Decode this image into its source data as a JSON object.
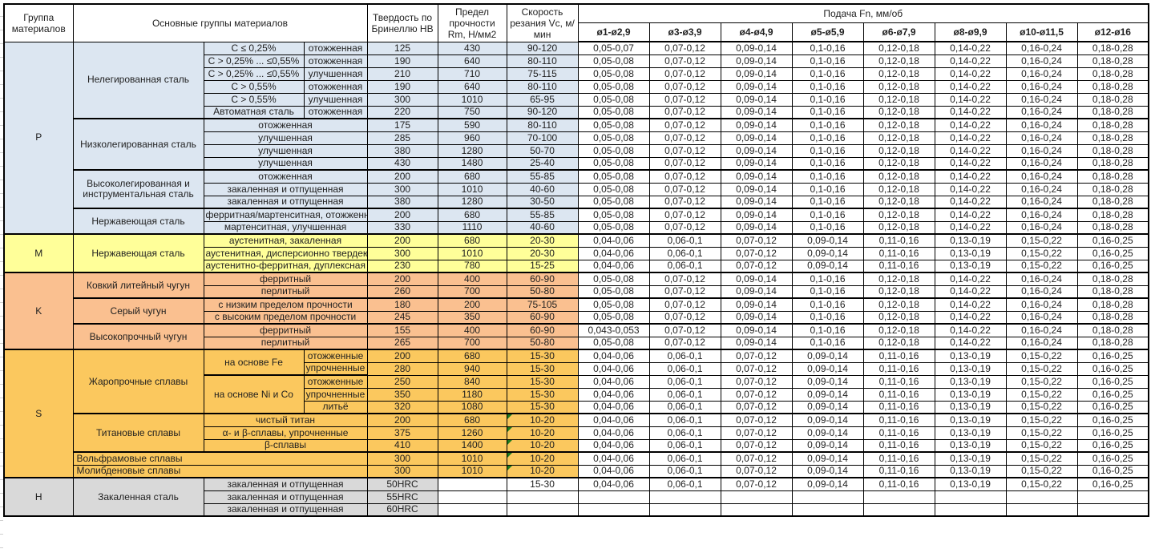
{
  "header": {
    "col_group": "Группа материалов",
    "col_main": "Основные группы материалов",
    "col_hb": "Твердость по Бринеллю HB",
    "col_rm": "Предел прочности Rm, Н/мм2",
    "col_vc": "Скорость резания Vc, м/мин",
    "feed_title": "Подача Fn, мм/об",
    "feed_cols": [
      "ø1-ø2,9",
      "ø3-ø3,9",
      "ø4-ø4,9",
      "ø5-ø5,9",
      "ø6-ø7,9",
      "ø8-ø9,9",
      "ø10-ø11,5",
      "ø12-ø16"
    ]
  },
  "group_colors": {
    "P": "#DCE6F1",
    "M": "#FFFF99",
    "K": "#FAC090",
    "S": "#FBC85E",
    "H": "#D9D9D9"
  },
  "feed_patterns": {
    "A": [
      "0,05-0,07",
      "0,07-0,12",
      "0,09-0,14",
      "0,1-0,16",
      "0,12-0,18",
      "0,14-0,22",
      "0,16-0,24",
      "0,18-0,28"
    ],
    "B": [
      "0,05-0,08",
      "0,07-0,12",
      "0,09-0,14",
      "0,1-0,16",
      "0,12-0,18",
      "0,14-0,22",
      "0,16-0,24",
      "0,18-0,28"
    ],
    "C": [
      "0,043-0,053",
      "0,07-0,12",
      "0,09-0,14",
      "0,1-0,16",
      "0,12-0,18",
      "0,14-0,22",
      "0,16-0,24",
      "0,18-0,28"
    ],
    "D": [
      "0,04-0,06",
      "0,06-0,1",
      "0,07-0,12",
      "0,09-0,14",
      "0,11-0,16",
      "0,13-0,19",
      "0,15-0,22",
      "0,16-0,25"
    ],
    "E": [
      "",
      "",
      "",
      "",
      "",
      "",
      "",
      ""
    ]
  },
  "rows": [
    {
      "g": "P",
      "fp": "A",
      "cells": [
        {
          "k": "g",
          "t": "P",
          "rs": 15
        },
        {
          "k": "b",
          "t": "Нелегированная сталь",
          "rs": 6
        },
        {
          "k": "c",
          "t": "C ≤ 0,25%"
        },
        {
          "k": "d",
          "t": "отожженная"
        },
        {
          "k": "hb",
          "t": "125"
        },
        {
          "k": "rm",
          "t": "430"
        },
        {
          "k": "vc",
          "t": "90-120"
        }
      ]
    },
    {
      "g": "P",
      "fp": "B",
      "cells": [
        {
          "k": "c",
          "t": "C > 0,25% ... ≤0,55%"
        },
        {
          "k": "d",
          "t": "отожженная"
        },
        {
          "k": "hb",
          "t": "190"
        },
        {
          "k": "rm",
          "t": "640"
        },
        {
          "k": "vc",
          "t": "80-110"
        }
      ]
    },
    {
      "g": "P",
      "fp": "B",
      "cells": [
        {
          "k": "c",
          "t": "C > 0,25% ... ≤0,55%"
        },
        {
          "k": "d",
          "t": "улучшенная"
        },
        {
          "k": "hb",
          "t": "210"
        },
        {
          "k": "rm",
          "t": "710"
        },
        {
          "k": "vc",
          "t": "75-115"
        }
      ]
    },
    {
      "g": "P",
      "fp": "B",
      "cells": [
        {
          "k": "c",
          "t": "C > 0,55%"
        },
        {
          "k": "d",
          "t": "отожженная"
        },
        {
          "k": "hb",
          "t": "190"
        },
        {
          "k": "rm",
          "t": "640"
        },
        {
          "k": "vc",
          "t": "80-110"
        }
      ]
    },
    {
      "g": "P",
      "fp": "B",
      "cells": [
        {
          "k": "c",
          "t": "C > 0,55%"
        },
        {
          "k": "d",
          "t": "улучшенная"
        },
        {
          "k": "hb",
          "t": "300"
        },
        {
          "k": "rm",
          "t": "1010"
        },
        {
          "k": "vc",
          "t": "65-95"
        }
      ]
    },
    {
      "g": "P",
      "fp": "B",
      "cells": [
        {
          "k": "c",
          "t": "Автоматная сталь"
        },
        {
          "k": "d",
          "t": "отожженная"
        },
        {
          "k": "hb",
          "t": "220"
        },
        {
          "k": "rm",
          "t": "750"
        },
        {
          "k": "vc",
          "t": "90-120"
        }
      ]
    },
    {
      "g": "P",
      "fp": "B",
      "bt": 1,
      "cells": [
        {
          "k": "b",
          "t": "Низколегированная сталь",
          "rs": 4
        },
        {
          "k": "c",
          "t": "отожженная",
          "cs": 2
        },
        {
          "k": "hb",
          "t": "175"
        },
        {
          "k": "rm",
          "t": "590"
        },
        {
          "k": "vc",
          "t": "80-110"
        }
      ]
    },
    {
      "g": "P",
      "fp": "B",
      "cells": [
        {
          "k": "c",
          "t": "улучшенная",
          "cs": 2
        },
        {
          "k": "hb",
          "t": "285"
        },
        {
          "k": "rm",
          "t": "960"
        },
        {
          "k": "vc",
          "t": "70-100"
        }
      ]
    },
    {
      "g": "P",
      "fp": "B",
      "cells": [
        {
          "k": "c",
          "t": "улучшенная",
          "cs": 2
        },
        {
          "k": "hb",
          "t": "380"
        },
        {
          "k": "rm",
          "t": "1280"
        },
        {
          "k": "vc",
          "t": "50-70"
        }
      ]
    },
    {
      "g": "P",
      "fp": "B",
      "cells": [
        {
          "k": "c",
          "t": "улучшенная",
          "cs": 2
        },
        {
          "k": "hb",
          "t": "430"
        },
        {
          "k": "rm",
          "t": "1480"
        },
        {
          "k": "vc",
          "t": "25-40"
        }
      ]
    },
    {
      "g": "P",
      "fp": "B",
      "bt": 1,
      "cells": [
        {
          "k": "b",
          "t": "Высоколегированная и инструментальная сталь",
          "rs": 3
        },
        {
          "k": "c",
          "t": "отожженная",
          "cs": 2
        },
        {
          "k": "hb",
          "t": "200"
        },
        {
          "k": "rm",
          "t": "680"
        },
        {
          "k": "vc",
          "t": "55-85"
        }
      ]
    },
    {
      "g": "P",
      "fp": "B",
      "cells": [
        {
          "k": "c",
          "t": "закаленная и отпущенная",
          "cs": 2
        },
        {
          "k": "hb",
          "t": "300"
        },
        {
          "k": "rm",
          "t": "1010"
        },
        {
          "k": "vc",
          "t": "40-60"
        }
      ]
    },
    {
      "g": "P",
      "fp": "B",
      "cells": [
        {
          "k": "c",
          "t": "закаленная и отпущенная",
          "cs": 2
        },
        {
          "k": "hb",
          "t": "380"
        },
        {
          "k": "rm",
          "t": "1280"
        },
        {
          "k": "vc",
          "t": "30-50"
        }
      ]
    },
    {
      "g": "P",
      "fp": "B",
      "bt": 1,
      "cells": [
        {
          "k": "b",
          "t": "Нержавеющая сталь",
          "rs": 2
        },
        {
          "k": "c",
          "t": "ферритная/мартенситная, отожженная",
          "cs": 2
        },
        {
          "k": "hb",
          "t": "200"
        },
        {
          "k": "rm",
          "t": "680"
        },
        {
          "k": "vc",
          "t": "55-85"
        }
      ]
    },
    {
      "g": "P",
      "fp": "B",
      "cells": [
        {
          "k": "c",
          "t": "мартенситная, улучшенная",
          "cs": 2
        },
        {
          "k": "hb",
          "t": "330"
        },
        {
          "k": "rm",
          "t": "1110"
        },
        {
          "k": "vc",
          "t": "40-60"
        }
      ]
    },
    {
      "g": "M",
      "fp": "D",
      "bt": 1,
      "cells": [
        {
          "k": "g",
          "t": "M",
          "rs": 3
        },
        {
          "k": "b",
          "t": "Нержавеющая сталь",
          "rs": 3
        },
        {
          "k": "c",
          "t": "аустенитная, закаленная",
          "cs": 2
        },
        {
          "k": "hb",
          "t": "200"
        },
        {
          "k": "rm",
          "t": "680"
        },
        {
          "k": "vc",
          "t": "20-30"
        }
      ]
    },
    {
      "g": "M",
      "fp": "D",
      "cells": [
        {
          "k": "c",
          "t": "аустенитная, дисперсионно твердеющая",
          "cs": 2
        },
        {
          "k": "hb",
          "t": "300"
        },
        {
          "k": "rm",
          "t": "1010"
        },
        {
          "k": "vc",
          "t": "20-30"
        }
      ]
    },
    {
      "g": "M",
      "fp": "D",
      "cells": [
        {
          "k": "c",
          "t": "аустенитно-ферритная, дуплексная",
          "cs": 2
        },
        {
          "k": "hb",
          "t": "230"
        },
        {
          "k": "rm",
          "t": "780"
        },
        {
          "k": "vc",
          "t": "15-25"
        }
      ]
    },
    {
      "g": "K",
      "fp": "B",
      "bt": 1,
      "cells": [
        {
          "k": "g",
          "t": "K",
          "rs": 6
        },
        {
          "k": "b",
          "t": "Ковкий литейный чугун",
          "rs": 2
        },
        {
          "k": "c",
          "t": "ферритный",
          "cs": 2
        },
        {
          "k": "hb",
          "t": "200"
        },
        {
          "k": "rm",
          "t": "400"
        },
        {
          "k": "vc",
          "t": "60-90"
        }
      ]
    },
    {
      "g": "K",
      "fp": "B",
      "cells": [
        {
          "k": "c",
          "t": "перлитный",
          "cs": 2
        },
        {
          "k": "hb",
          "t": "260"
        },
        {
          "k": "rm",
          "t": "700"
        },
        {
          "k": "vc",
          "t": "50-80"
        }
      ]
    },
    {
      "g": "K",
      "fp": "B",
      "bt": 1,
      "cells": [
        {
          "k": "b",
          "t": "Серый чугун",
          "rs": 2
        },
        {
          "k": "c",
          "t": "с низким пределом прочности",
          "cs": 2
        },
        {
          "k": "hb",
          "t": "180"
        },
        {
          "k": "rm",
          "t": "200"
        },
        {
          "k": "vc",
          "t": "75-105"
        }
      ]
    },
    {
      "g": "K",
      "fp": "B",
      "cells": [
        {
          "k": "c",
          "t": "с высоким пределом прочности",
          "cs": 2
        },
        {
          "k": "hb",
          "t": "245"
        },
        {
          "k": "rm",
          "t": "350"
        },
        {
          "k": "vc",
          "t": "60-90"
        }
      ]
    },
    {
      "g": "K",
      "fp": "C",
      "bt": 1,
      "cells": [
        {
          "k": "b",
          "t": "Высокопрочный чугун",
          "rs": 2
        },
        {
          "k": "c",
          "t": "ферритный",
          "cs": 2
        },
        {
          "k": "hb",
          "t": "155"
        },
        {
          "k": "rm",
          "t": "400"
        },
        {
          "k": "vc",
          "t": "60-90"
        }
      ]
    },
    {
      "g": "K",
      "fp": "B",
      "cells": [
        {
          "k": "c",
          "t": "перлитный",
          "cs": 2
        },
        {
          "k": "hb",
          "t": "265"
        },
        {
          "k": "rm",
          "t": "700"
        },
        {
          "k": "vc",
          "t": "50-80"
        }
      ]
    },
    {
      "g": "S",
      "fp": "D",
      "bt": 1,
      "cells": [
        {
          "k": "g",
          "t": "S",
          "rs": 10
        },
        {
          "k": "b",
          "t": "Жаропрочные сплавы",
          "rs": 5
        },
        {
          "k": "c",
          "t": "на основе Fe",
          "rs": 2
        },
        {
          "k": "d",
          "t": "отожженные"
        },
        {
          "k": "hb",
          "t": "200"
        },
        {
          "k": "rm",
          "t": "680"
        },
        {
          "k": "vc",
          "t": "15-30"
        }
      ]
    },
    {
      "g": "S",
      "fp": "D",
      "cells": [
        {
          "k": "d",
          "t": "упрочненные"
        },
        {
          "k": "hb",
          "t": "280"
        },
        {
          "k": "rm",
          "t": "940"
        },
        {
          "k": "vc",
          "t": "15-30"
        }
      ]
    },
    {
      "g": "S",
      "fp": "D",
      "cells": [
        {
          "k": "c",
          "t": "на основе Ni и Co",
          "rs": 3,
          "bt": 1
        },
        {
          "k": "d",
          "t": "отожженные",
          "bt": 1
        },
        {
          "k": "hb",
          "t": "250"
        },
        {
          "k": "rm",
          "t": "840"
        },
        {
          "k": "vc",
          "t": "15-30"
        }
      ]
    },
    {
      "g": "S",
      "fp": "D",
      "cells": [
        {
          "k": "d",
          "t": "упрочненные"
        },
        {
          "k": "hb",
          "t": "350"
        },
        {
          "k": "rm",
          "t": "1180"
        },
        {
          "k": "vc",
          "t": "15-30"
        }
      ]
    },
    {
      "g": "S",
      "fp": "D",
      "cells": [
        {
          "k": "d",
          "t": "литьё"
        },
        {
          "k": "hb",
          "t": "320"
        },
        {
          "k": "rm",
          "t": "1080"
        },
        {
          "k": "vc",
          "t": "15-30"
        }
      ]
    },
    {
      "g": "S",
      "fp": "D",
      "bt": 1,
      "cells": [
        {
          "k": "b",
          "t": "Титановые сплавы",
          "rs": 3
        },
        {
          "k": "c",
          "t": "чистый титан",
          "cs": 2
        },
        {
          "k": "hb",
          "t": "200"
        },
        {
          "k": "rm",
          "t": "680"
        },
        {
          "k": "vc",
          "t": "10-20",
          "fl": 1
        }
      ]
    },
    {
      "g": "S",
      "fp": "D",
      "cells": [
        {
          "k": "c",
          "t": "α- и β-сплавы, упрочненные",
          "cs": 2
        },
        {
          "k": "hb",
          "t": "375"
        },
        {
          "k": "rm",
          "t": "1260"
        },
        {
          "k": "vc",
          "t": "10-20",
          "fl": 1
        }
      ]
    },
    {
      "g": "S",
      "fp": "D",
      "cells": [
        {
          "k": "c",
          "t": "β-сплавы",
          "cs": 2
        },
        {
          "k": "hb",
          "t": "410"
        },
        {
          "k": "rm",
          "t": "1400"
        },
        {
          "k": "vc",
          "t": "10-20",
          "fl": 1
        }
      ]
    },
    {
      "g": "S",
      "fp": "D",
      "bt": 1,
      "cells": [
        {
          "k": "b",
          "t": "Вольфрамовые сплавы",
          "cs": 3,
          "al": "l"
        },
        {
          "k": "hb",
          "t": "300"
        },
        {
          "k": "rm",
          "t": "1010"
        },
        {
          "k": "vc",
          "t": "10-20",
          "fl": 1
        }
      ]
    },
    {
      "g": "S",
      "fp": "D",
      "cells": [
        {
          "k": "b",
          "t": "Молибденовые сплавы",
          "cs": 3,
          "al": "l"
        },
        {
          "k": "hb",
          "t": "300"
        },
        {
          "k": "rm",
          "t": "1010"
        },
        {
          "k": "vc",
          "t": "10-20",
          "fl": 1
        }
      ]
    },
    {
      "g": "H",
      "fp": "D",
      "bt": 1,
      "cells": [
        {
          "k": "g",
          "t": "H",
          "rs": 3
        },
        {
          "k": "b",
          "t": "Закаленная сталь",
          "rs": 3
        },
        {
          "k": "c",
          "t": "закаленная и отпущенная",
          "cs": 2
        },
        {
          "k": "hb",
          "t": "50HRC"
        },
        {
          "k": "rm",
          "t": "",
          "bg": "w"
        },
        {
          "k": "vc",
          "t": "15-30",
          "bg": "w"
        }
      ]
    },
    {
      "g": "H",
      "fp": "E",
      "cells": [
        {
          "k": "c",
          "t": "закаленная и отпущенная",
          "cs": 2
        },
        {
          "k": "hb",
          "t": "55HRC"
        },
        {
          "k": "rm",
          "t": "",
          "bg": "w"
        },
        {
          "k": "vc",
          "t": "",
          "bg": "w"
        }
      ]
    },
    {
      "g": "H",
      "fp": "E",
      "cells": [
        {
          "k": "c",
          "t": "закаленная и отпущенная",
          "cs": 2
        },
        {
          "k": "hb",
          "t": "60HRC"
        },
        {
          "k": "rm",
          "t": "",
          "bg": "w"
        },
        {
          "k": "vc",
          "t": "",
          "bg": "w"
        }
      ]
    }
  ]
}
